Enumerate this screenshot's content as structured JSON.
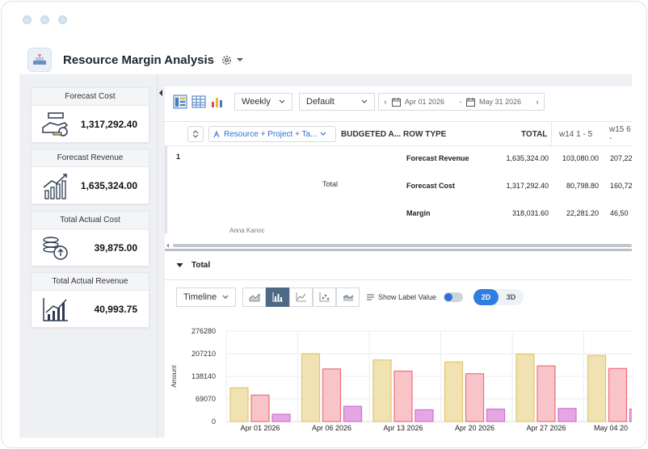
{
  "page": {
    "title": "Resource Margin Analysis"
  },
  "kpis": [
    {
      "title": "Forecast Cost",
      "value": "1,317,292.40",
      "icon": "money-hand-icon"
    },
    {
      "title": "Forecast Revenue",
      "value": "1,635,324.00",
      "icon": "growth-chart-hand-icon"
    },
    {
      "title": "Total Actual Cost",
      "value": "39,875.00",
      "icon": "coins-stack-icon"
    },
    {
      "title": "Total Actual Revenue",
      "value": "40,993.75",
      "icon": "rising-chart-icon"
    }
  ],
  "toolbar": {
    "period": "Weekly",
    "layout": "Default",
    "date_from": "Apr 01 2026",
    "date_separator": "-",
    "date_to": "May 31 2026"
  },
  "grid": {
    "group_label": "Resource + Project + Ta...",
    "columns": {
      "budgeted": "BUDGETED A...",
      "row_type": "ROW TYPE",
      "total": "TOTAL",
      "w14": "w14  1 - 5",
      "w15": "w15  6 -"
    },
    "row_number": "1",
    "group_total_label": "Total",
    "rows": [
      {
        "type": "Forecast Revenue",
        "total": "1,635,324.00",
        "w14": "103,080.00",
        "w15": "207,22"
      },
      {
        "type": "Forecast Cost",
        "total": "1,317,292.40",
        "w14": "80,798.80",
        "w15": "160,72"
      },
      {
        "type": "Margin",
        "total": "318,031.60",
        "w14": "22,281.20",
        "w15": "46,50"
      }
    ],
    "next_row_hint": "Anna Kanoc"
  },
  "section": {
    "title": "Total"
  },
  "chart_controls": {
    "mode": "Timeline",
    "show_label": "Show Label Value",
    "dim_2d": "2D",
    "dim_3d": "3D"
  },
  "colors": {
    "accent": "#2f7de0",
    "revenue_fill": "#f1e2b3",
    "revenue_stroke": "#e2c56b",
    "cost_fill": "#f8c4c8",
    "cost_stroke": "#ee6f7c",
    "margin_fill": "#e6a6e3",
    "margin_stroke": "#cc76c8"
  },
  "chart_data": {
    "type": "bar",
    "ylabel": "Amount",
    "ylim": [
      0,
      276280
    ],
    "yticks": [
      "276280",
      "207210",
      "138140",
      "69070",
      "0"
    ],
    "categories": [
      "Apr 01 2026",
      "Apr 06 2026",
      "Apr 13 2026",
      "Apr 20 2026",
      "Apr 27 2026",
      "May 04 20"
    ],
    "series": [
      {
        "values": [
          103080,
          207220,
          188000,
          182000,
          206000,
          202000
        ]
      },
      {
        "values": [
          80799,
          160720,
          154000,
          146000,
          170000,
          162000
        ]
      },
      {
        "values": [
          22281,
          46500,
          36000,
          38000,
          40000,
          38000
        ]
      }
    ]
  }
}
